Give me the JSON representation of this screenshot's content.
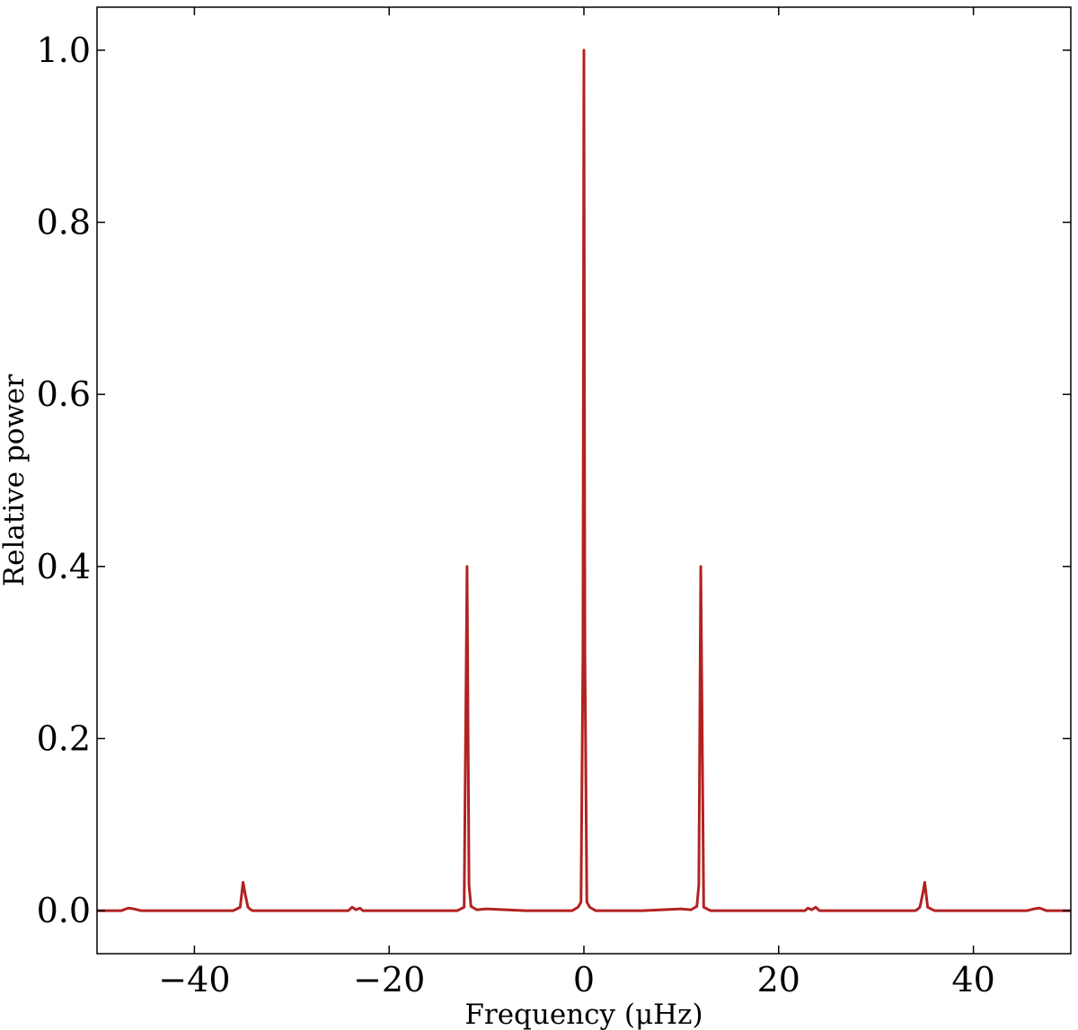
{
  "chart_data": {
    "type": "line",
    "title": "",
    "xlabel": "Frequency (μHz)",
    "ylabel": "Relative power",
    "xlim": [
      -50,
      50
    ],
    "ylim": [
      -0.05,
      1.05
    ],
    "xticks": [
      -40,
      -20,
      0,
      20,
      40
    ],
    "xtick_labels": [
      "−40",
      "−20",
      "0",
      "20",
      "40"
    ],
    "yticks": [
      0.0,
      0.2,
      0.4,
      0.6,
      0.8,
      1.0
    ],
    "ytick_labels": [
      "0.0",
      "0.2",
      "0.4",
      "0.6",
      "0.8",
      "1.0"
    ],
    "grid": false,
    "legend": false,
    "series": [
      {
        "color": "#b22222",
        "x": [
          -50,
          -47.5,
          -46.8,
          -46.2,
          -45.5,
          -40,
          -36,
          -35.3,
          -35.0,
          -34.8,
          -34.5,
          -34.2,
          -34.0,
          -33.5,
          -30,
          -24.2,
          -23.8,
          -23.4,
          -23.0,
          -22.7,
          -22.3,
          -22.0,
          -16,
          -13,
          -12.3,
          -12.0,
          -11.8,
          -11.6,
          -11.3,
          -11.0,
          -10,
          -6,
          -1.2,
          -0.6,
          -0.3,
          -0.1,
          0.0,
          0.1,
          0.3,
          0.6,
          1.2,
          6,
          10,
          11.0,
          11.3,
          11.6,
          11.8,
          12.0,
          12.3,
          13,
          16,
          22.0,
          22.3,
          22.7,
          23.0,
          23.4,
          23.8,
          24.2,
          30,
          33.5,
          34.0,
          34.2,
          34.5,
          34.8,
          35.0,
          35.3,
          36,
          40,
          45.5,
          46.2,
          46.8,
          47.5,
          50
        ],
        "y": [
          0.0,
          0.0,
          0.003,
          0.002,
          0.0,
          0.0,
          0.0,
          0.004,
          0.033,
          0.02,
          0.004,
          0.001,
          0.0,
          0.0,
          0.0,
          0.0,
          0.004,
          0.001,
          0.003,
          0.0,
          0.0,
          0.0,
          0.0,
          0.0,
          0.004,
          0.4,
          0.03,
          0.005,
          0.003,
          0.001,
          0.002,
          0.0,
          0.0,
          0.004,
          0.01,
          0.3,
          1.0,
          0.3,
          0.01,
          0.004,
          0.0,
          0.0,
          0.002,
          0.001,
          0.003,
          0.005,
          0.03,
          0.4,
          0.004,
          0.0,
          0.0,
          0.0,
          0.0,
          0.0,
          0.003,
          0.001,
          0.004,
          0.0,
          0.0,
          0.0,
          0.0,
          0.001,
          0.004,
          0.02,
          0.033,
          0.004,
          0.0,
          0.0,
          0.0,
          0.002,
          0.003,
          0.0,
          0.0
        ]
      }
    ]
  }
}
